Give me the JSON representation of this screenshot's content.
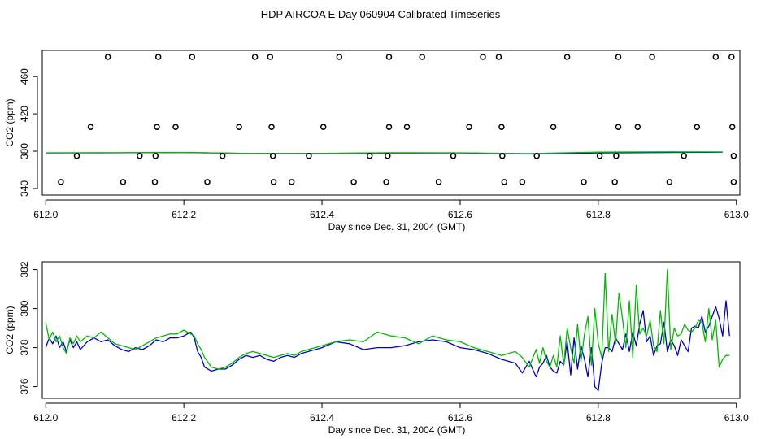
{
  "title": "HDP AIRCOA E  Day 060904  Calibrated Timeseries",
  "colors": {
    "line_a": "#0000cc",
    "line_b": "#00bb00",
    "points": "#000000",
    "frame": "#000000"
  },
  "chart_data": [
    {
      "type": "line",
      "xlabel": "Day since Dec. 31, 2004 (GMT)",
      "ylabel": "CO2 (ppm)",
      "xlim": [
        611.995,
        613.005
      ],
      "ylim": [
        333,
        488
      ],
      "xticks": [
        612.0,
        612.2,
        612.4,
        612.6,
        612.8,
        613.0
      ],
      "xtick_labels": [
        "612.0",
        "612.2",
        "612.4",
        "612.6",
        "612.8",
        "613.0"
      ],
      "yticks": [
        340,
        380,
        420,
        460
      ],
      "ytick_labels": [
        "340",
        "380",
        "420",
        "460"
      ],
      "scatter": {
        "x": [
          612.09,
          612.163,
          612.212,
          612.303,
          612.325,
          612.425,
          612.497,
          612.545,
          612.633,
          612.656,
          612.755,
          612.829,
          612.878,
          612.97,
          612.993,
          612.065,
          612.161,
          612.188,
          612.28,
          612.327,
          612.402,
          612.497,
          612.523,
          612.613,
          612.66,
          612.735,
          612.829,
          612.857,
          612.943,
          612.994,
          612.045,
          612.136,
          612.159,
          612.256,
          612.329,
          612.381,
          612.469,
          612.495,
          612.59,
          612.661,
          612.711,
          612.802,
          612.826,
          612.924,
          612.996,
          612.022,
          612.112,
          612.158,
          612.234,
          612.33,
          612.356,
          612.446,
          612.493,
          612.569,
          612.664,
          612.69,
          612.779,
          612.824,
          612.903,
          612.996
        ],
        "y": [
          481,
          481,
          481,
          481,
          481,
          481,
          481,
          481,
          481,
          481,
          481,
          481,
          481,
          481,
          481,
          406,
          406,
          406,
          406,
          406,
          406,
          406,
          406,
          406,
          406,
          406,
          406,
          406,
          406,
          406,
          375,
          375,
          375,
          375,
          375,
          375,
          375,
          375,
          375,
          375,
          375,
          375,
          375,
          375,
          375,
          347,
          347,
          347,
          347,
          347,
          347,
          347,
          347,
          347,
          347,
          347,
          347,
          347,
          347,
          347
        ]
      },
      "series": [
        {
          "x": [
            612.0,
            612.1,
            612.2,
            612.3,
            612.4,
            612.5,
            612.6,
            612.7,
            612.8,
            612.9,
            612.98
          ],
          "values": [
            378.2,
            378.3,
            378.6,
            377.5,
            377.6,
            378.1,
            378.2,
            377.0,
            378.2,
            378.6,
            379.0
          ]
        },
        {
          "x": [
            612.0,
            612.1,
            612.2,
            612.3,
            612.4,
            612.5,
            612.6,
            612.7,
            612.8,
            612.9,
            612.98
          ],
          "values": [
            378.3,
            378.4,
            378.6,
            377.6,
            377.7,
            378.4,
            378.3,
            377.5,
            379.0,
            379.3,
            379.2
          ]
        }
      ]
    },
    {
      "type": "line",
      "xlabel": "Day since Dec. 31, 2004 (GMT)",
      "ylabel": "CO2 (ppm)",
      "xlim": [
        611.995,
        613.005
      ],
      "ylim": [
        375.4,
        382.4
      ],
      "xticks": [
        612.0,
        612.2,
        612.4,
        612.6,
        612.8,
        613.0
      ],
      "xtick_labels": [
        "612.0",
        "612.2",
        "612.4",
        "612.6",
        "612.8",
        "613.0"
      ],
      "yticks": [
        376,
        378,
        380,
        382
      ],
      "ytick_labels": [
        "376",
        "378",
        "380",
        "382"
      ],
      "series": [
        {
          "x": [
            612.0,
            612.005,
            612.01,
            612.015,
            612.02,
            612.025,
            612.03,
            612.035,
            612.04,
            612.045,
            612.05,
            612.06,
            612.07,
            612.08,
            612.09,
            612.1,
            612.11,
            612.12,
            612.13,
            612.14,
            612.15,
            612.16,
            612.17,
            612.18,
            612.19,
            612.2,
            612.21,
            612.215,
            612.22,
            612.225,
            612.23,
            612.24,
            612.25,
            612.26,
            612.27,
            612.28,
            612.29,
            612.3,
            612.31,
            612.32,
            612.33,
            612.34,
            612.35,
            612.36,
            612.37,
            612.38,
            612.39,
            612.4,
            612.42,
            612.44,
            612.46,
            612.48,
            612.5,
            612.52,
            612.54,
            612.56,
            612.58,
            612.6,
            612.62,
            612.64,
            612.66,
            612.68,
            612.69,
            612.7,
            612.71,
            612.715,
            612.72,
            612.725,
            612.73,
            612.735,
            612.74,
            612.745,
            612.75,
            612.755,
            612.76,
            612.765,
            612.77,
            612.775,
            612.78,
            612.785,
            612.79,
            612.795,
            612.8,
            612.805,
            612.81,
            612.815,
            612.82,
            612.825,
            612.83,
            612.835,
            612.84,
            612.845,
            612.85,
            612.855,
            612.86,
            612.865,
            612.87,
            612.875,
            612.88,
            612.885,
            612.89,
            612.895,
            612.9,
            612.905,
            612.91,
            612.915,
            612.92,
            612.925,
            612.93,
            612.935,
            612.94,
            612.945,
            612.95,
            612.955,
            612.96,
            612.965,
            612.97,
            612.975,
            612.98,
            612.985,
            612.99
          ],
          "values": [
            378.0,
            378.5,
            378.2,
            378.6,
            378.0,
            378.3,
            377.8,
            378.4,
            378.0,
            378.3,
            377.9,
            378.3,
            378.5,
            378.3,
            378.4,
            378.1,
            377.9,
            377.8,
            378.0,
            377.9,
            378.1,
            378.4,
            378.3,
            378.5,
            378.5,
            378.6,
            378.8,
            378.5,
            377.8,
            377.5,
            377.0,
            376.8,
            376.9,
            376.9,
            377.1,
            377.4,
            377.6,
            377.5,
            377.6,
            377.4,
            377.3,
            377.5,
            377.6,
            377.5,
            377.7,
            377.8,
            377.9,
            378.0,
            378.3,
            378.2,
            377.9,
            378.0,
            378.0,
            378.1,
            378.3,
            378.4,
            378.3,
            378.0,
            377.9,
            377.7,
            377.4,
            377.2,
            376.7,
            377.3,
            376.5,
            377.0,
            377.2,
            377.6,
            377.0,
            376.8,
            376.7,
            377.3,
            377.1,
            378.3,
            376.6,
            378.5,
            376.9,
            378.1,
            377.4,
            376.5,
            378.0,
            376.0,
            375.8,
            377.2,
            378.0,
            378.0,
            377.8,
            378.5,
            378.2,
            377.9,
            378.7,
            377.8,
            378.8,
            378.1,
            379.2,
            379.9,
            378.3,
            378.6,
            377.6,
            378.1,
            378.2,
            379.3,
            377.8,
            378.4,
            378.1,
            377.6,
            378.4,
            378.1,
            377.8,
            379.0,
            379.1,
            379.0,
            379.6,
            378.8,
            379.1,
            379.6,
            380.1,
            379.5,
            378.6,
            380.4,
            378.6
          ]
        },
        {
          "x": [
            612.0,
            612.005,
            612.01,
            612.015,
            612.02,
            612.025,
            612.03,
            612.035,
            612.04,
            612.045,
            612.05,
            612.06,
            612.07,
            612.08,
            612.09,
            612.1,
            612.11,
            612.12,
            612.13,
            612.14,
            612.15,
            612.16,
            612.17,
            612.18,
            612.19,
            612.2,
            612.21,
            612.215,
            612.22,
            612.225,
            612.23,
            612.24,
            612.25,
            612.26,
            612.27,
            612.28,
            612.29,
            612.3,
            612.31,
            612.32,
            612.33,
            612.34,
            612.35,
            612.36,
            612.37,
            612.38,
            612.39,
            612.4,
            612.42,
            612.44,
            612.46,
            612.48,
            612.5,
            612.52,
            612.54,
            612.56,
            612.58,
            612.6,
            612.62,
            612.64,
            612.66,
            612.68,
            612.69,
            612.7,
            612.71,
            612.715,
            612.72,
            612.725,
            612.73,
            612.735,
            612.74,
            612.745,
            612.75,
            612.755,
            612.76,
            612.765,
            612.77,
            612.775,
            612.78,
            612.785,
            612.79,
            612.795,
            612.8,
            612.805,
            612.81,
            612.815,
            612.82,
            612.825,
            612.83,
            612.835,
            612.84,
            612.845,
            612.85,
            612.855,
            612.86,
            612.865,
            612.87,
            612.875,
            612.88,
            612.885,
            612.89,
            612.895,
            612.9,
            612.905,
            612.91,
            612.915,
            612.92,
            612.925,
            612.93,
            612.935,
            612.94,
            612.945,
            612.95,
            612.955,
            612.96,
            612.965,
            612.97,
            612.975,
            612.98,
            612.985,
            612.99
          ],
          "values": [
            379.3,
            378.4,
            378.8,
            378.3,
            378.6,
            378.0,
            377.7,
            378.5,
            378.2,
            378.6,
            378.3,
            378.6,
            378.5,
            378.8,
            378.5,
            378.2,
            378.1,
            378.0,
            377.9,
            378.1,
            378.3,
            378.5,
            378.6,
            378.7,
            378.7,
            378.9,
            378.7,
            378.6,
            378.2,
            377.9,
            377.5,
            377.0,
            376.9,
            377.0,
            377.2,
            377.5,
            377.7,
            377.8,
            377.7,
            377.6,
            377.5,
            377.6,
            377.7,
            377.6,
            377.8,
            377.9,
            378.0,
            378.1,
            378.3,
            378.4,
            378.3,
            378.8,
            378.6,
            378.5,
            378.2,
            378.6,
            378.4,
            378.3,
            378.0,
            377.8,
            377.6,
            377.8,
            377.5,
            377.0,
            377.9,
            377.2,
            378.0,
            377.3,
            377.0,
            377.6,
            377.0,
            378.6,
            377.1,
            379.0,
            378.0,
            377.2,
            379.2,
            377.3,
            378.7,
            379.6,
            377.1,
            380.0,
            378.2,
            377.5,
            381.8,
            377.8,
            379.7,
            378.2,
            380.8,
            379.5,
            378.0,
            380.4,
            377.5,
            381.2,
            378.7,
            379.0,
            378.6,
            379.4,
            378.1,
            377.8,
            379.9,
            378.2,
            382.0,
            377.9,
            379.0,
            378.6,
            378.7,
            379.2,
            378.9,
            378.8,
            379.0,
            379.4,
            379.3,
            378.3,
            380.0,
            378.4,
            379.4,
            377.0,
            377.4,
            377.6,
            377.6
          ]
        }
      ]
    }
  ]
}
